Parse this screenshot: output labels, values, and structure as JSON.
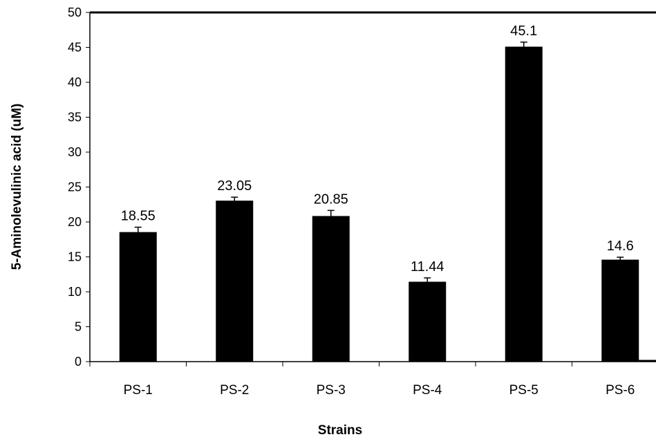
{
  "chart_data": {
    "type": "bar",
    "title": "",
    "xlabel": "Strains",
    "ylabel": "5-Aminolevulinic acid (uM)",
    "categories": [
      "PS-1",
      "PS-2",
      "PS-3",
      "PS-4",
      "PS-5",
      "PS-6"
    ],
    "values": [
      18.55,
      23.05,
      20.85,
      11.44,
      45.1,
      14.6
    ],
    "data_labels": [
      "18.55",
      "23.05",
      "20.85",
      "11.44",
      "45.1",
      "14.6"
    ],
    "error": [
      0.7,
      0.5,
      0.8,
      0.55,
      0.65,
      0.35
    ],
    "ylim": [
      0,
      50
    ],
    "yticks": [
      0,
      5,
      10,
      15,
      20,
      25,
      30,
      35,
      40,
      45,
      50
    ],
    "grid": false,
    "legend": "none",
    "bar_color": "#000000"
  }
}
